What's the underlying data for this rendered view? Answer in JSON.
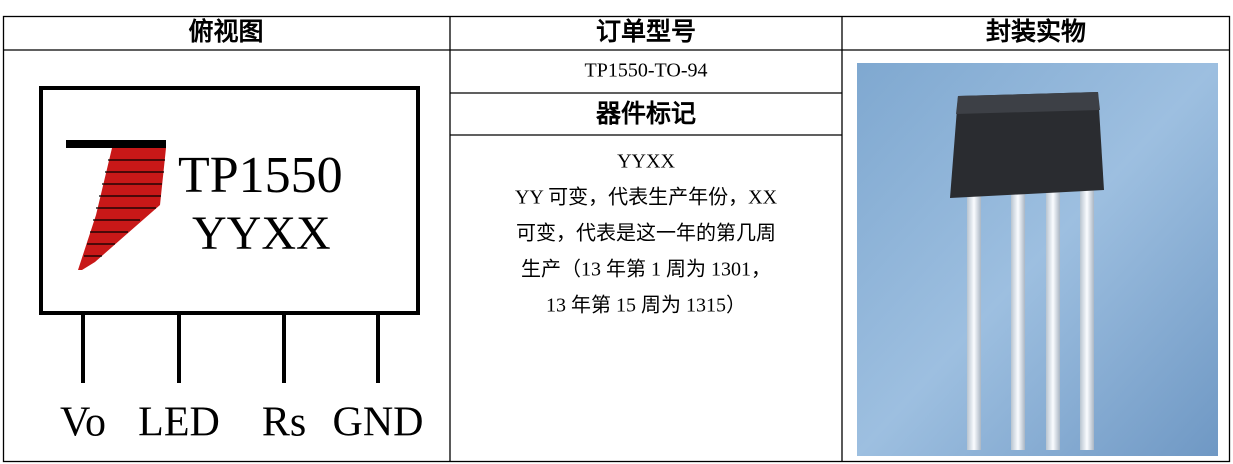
{
  "table": {
    "headers": [
      "俯视图",
      "订单型号",
      "封装实物"
    ],
    "order_model": "TP1550-TO-94",
    "marking_header": "器件标记",
    "marking_lines": [
      "YYXX",
      "YY 可变，代表生产年份，XX",
      "可变，代表是这一年的第几周",
      "生产（13 年第 1 周为 1301，",
      "13 年第 15 周为 1315）"
    ]
  },
  "diagram": {
    "logo_text": "TP1550",
    "code": "YYXX",
    "pins": [
      "Vo",
      "LED",
      "Rs",
      "GND"
    ]
  }
}
